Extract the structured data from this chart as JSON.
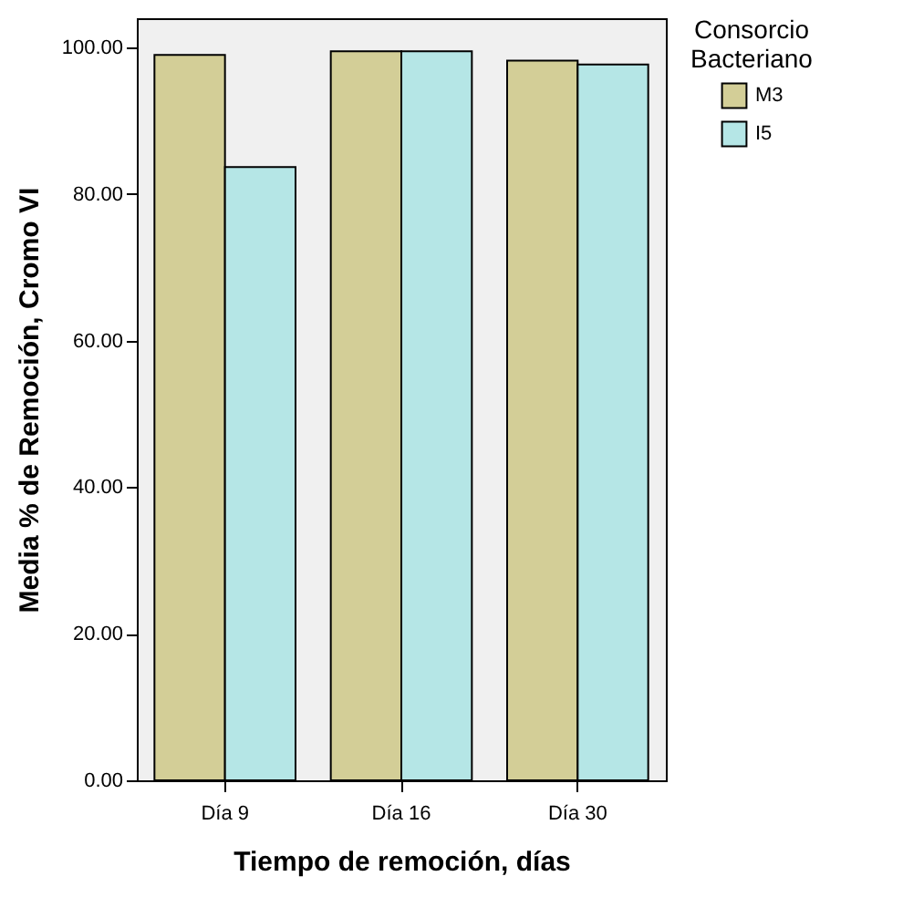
{
  "chart_data": {
    "type": "bar",
    "xlabel": "Tiempo de remoción, días",
    "ylabel": "Media % de Remoción, Cromo VI",
    "legend_title": "Consorcio Bacteriano",
    "categories": [
      "Día 9",
      "Día 16",
      "Día 30"
    ],
    "series": [
      {
        "name": "M3",
        "color": "#d3ce97",
        "values": [
          99.0,
          99.5,
          98.2
        ]
      },
      {
        "name": "I5",
        "color": "#b5e6e6",
        "values": [
          83.7,
          99.5,
          97.7
        ]
      }
    ],
    "ylim": [
      0,
      104
    ],
    "yticks": [
      {
        "value": 0,
        "label": "0.00"
      },
      {
        "value": 20,
        "label": "20.00"
      },
      {
        "value": 40,
        "label": "40.00"
      },
      {
        "value": 60,
        "label": "60.00"
      },
      {
        "value": 80,
        "label": "80.00"
      },
      {
        "value": 100,
        "label": "100.00"
      }
    ],
    "grid": false,
    "legend": "right"
  }
}
